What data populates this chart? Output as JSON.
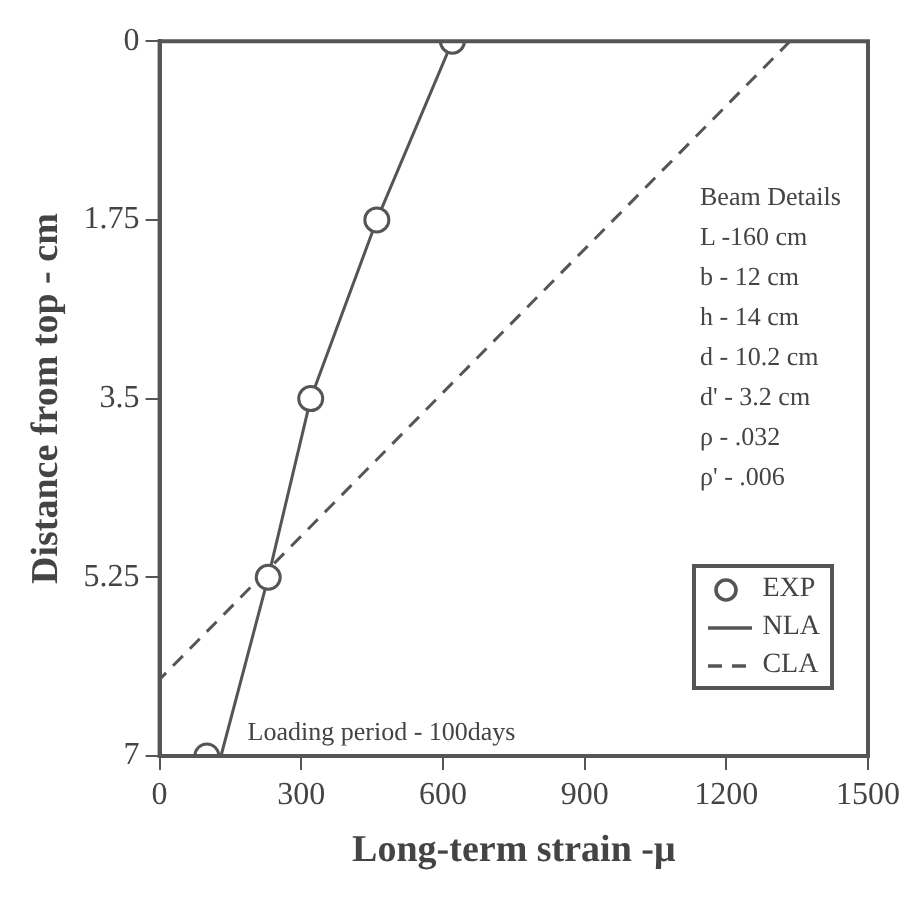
{
  "chart_data": {
    "type": "line",
    "xlabel": "Long-term strain -μ",
    "ylabel": "Distance from top - cm",
    "xlim": [
      0,
      1500
    ],
    "xticks": [
      0,
      300,
      600,
      900,
      1200,
      1500
    ],
    "ylim": [
      7,
      0
    ],
    "yticks": [
      0,
      1.75,
      3.5,
      5.25,
      7
    ],
    "grid": false,
    "legend": "bottom right",
    "series": [
      {
        "name": "EXP",
        "type": "scatter",
        "marker": "circle",
        "color": "#555555",
        "x": [
          620,
          460,
          320,
          230,
          100
        ],
        "values": [
          0,
          1.75,
          3.5,
          5.25,
          7
        ]
      },
      {
        "name": "NLA",
        "type": "line",
        "marker": "none",
        "line_style": "solid",
        "color": "#555555",
        "x": [
          620,
          460,
          320,
          230,
          130
        ],
        "values": [
          0,
          1.75,
          3.5,
          5.25,
          7
        ]
      },
      {
        "name": "CLA",
        "type": "line",
        "marker": "none",
        "line_style": "dashed",
        "color": "#555555",
        "x": [
          1335,
          0
        ],
        "values": [
          0,
          6.25
        ]
      }
    ],
    "annotations": [
      "Beam Details",
      "L -160 cm",
      "b - 12 cm",
      "h - 14 cm",
      "d - 10.2 cm",
      "d' - 3.2 cm",
      "ρ - .032",
      "ρ' - .006",
      "Loading period - 100days"
    ]
  }
}
